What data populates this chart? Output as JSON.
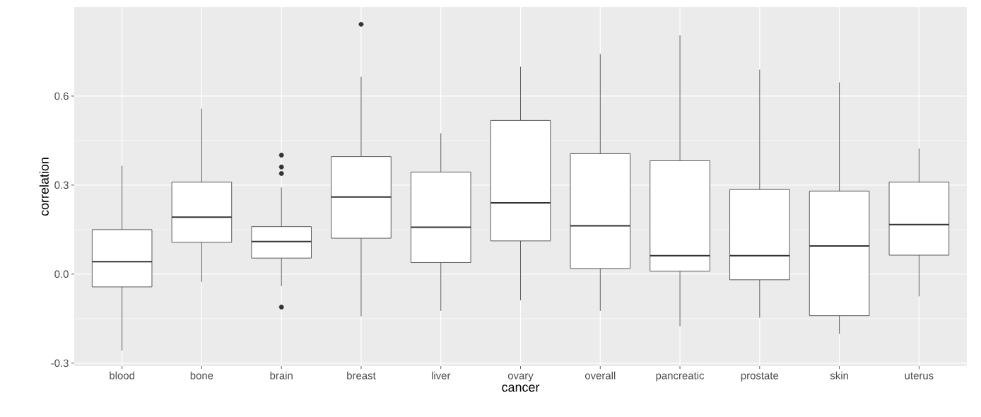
{
  "chart_data": {
    "type": "box",
    "xlabel": "cancer",
    "ylabel": "correlation",
    "categories": [
      "blood",
      "bone",
      "brain",
      "breast",
      "liver",
      "ovary",
      "overall",
      "pancreatic",
      "prostate",
      "skin",
      "uterus"
    ],
    "boxes": [
      {
        "low": -0.258,
        "q1": -0.043,
        "median": 0.042,
        "q3": 0.15,
        "high": 0.365
      },
      {
        "low": -0.026,
        "q1": 0.107,
        "median": 0.192,
        "q3": 0.31,
        "high": 0.558
      },
      {
        "low": -0.04,
        "q1": 0.054,
        "median": 0.11,
        "q3": 0.16,
        "high": 0.292,
        "outliers": [
          0.401,
          0.361,
          0.339,
          -0.111
        ]
      },
      {
        "low": -0.142,
        "q1": 0.121,
        "median": 0.26,
        "q3": 0.396,
        "high": 0.665,
        "outliers": [
          0.842
        ]
      },
      {
        "low": -0.124,
        "q1": 0.039,
        "median": 0.158,
        "q3": 0.344,
        "high": 0.475
      },
      {
        "low": -0.088,
        "q1": 0.112,
        "median": 0.24,
        "q3": 0.518,
        "high": 0.699
      },
      {
        "low": -0.124,
        "q1": 0.019,
        "median": 0.163,
        "q3": 0.406,
        "high": 0.742
      },
      {
        "low": -0.176,
        "q1": 0.01,
        "median": 0.062,
        "q3": 0.382,
        "high": 0.805
      },
      {
        "low": -0.147,
        "q1": -0.019,
        "median": 0.062,
        "q3": 0.285,
        "high": 0.689
      },
      {
        "low": -0.201,
        "q1": -0.14,
        "median": 0.095,
        "q3": 0.28,
        "high": 0.646
      },
      {
        "low": -0.075,
        "q1": 0.064,
        "median": 0.167,
        "q3": 0.31,
        "high": 0.423
      }
    ],
    "ylim": [
      -0.31,
      0.9
    ],
    "yticks": [
      -0.3,
      {
        "value": 0,
        "label": "0.0"
      },
      0.3,
      0.6
    ],
    "grid": true
  }
}
